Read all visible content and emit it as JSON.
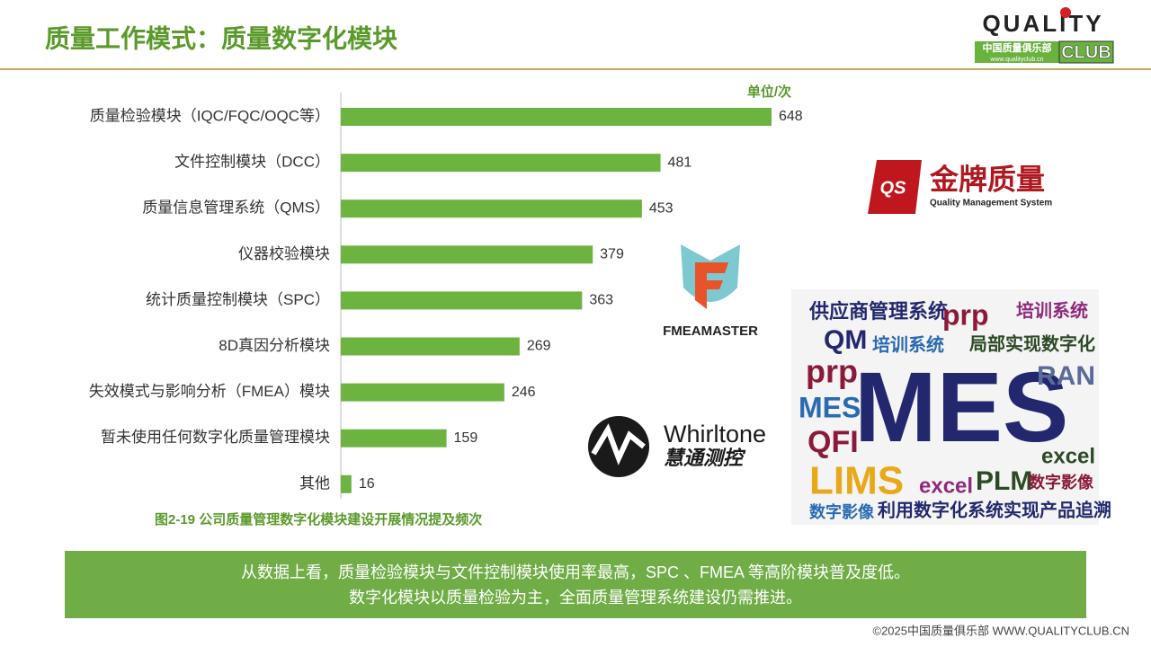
{
  "header": {
    "title": "质量工作模式：质量数字化模块"
  },
  "logos": {
    "quality_club": "QUALITY",
    "club": "CLUB",
    "club_cn": "中国质量俱乐部",
    "club_url": "www.qualityclub.cn",
    "qs_mark": "QS",
    "qs_name": "金牌质量",
    "qs_sub": "Quality Management System",
    "fmea": "FMEAMASTER",
    "whirltone": "Whirltone",
    "whirltone_cn": "慧通测控"
  },
  "chart_data": {
    "type": "bar",
    "orientation": "horizontal",
    "unit": "单位/次",
    "categories": [
      "质量检验模块（IQC/FQC/OQC等）",
      "文件控制模块（DCC）",
      "质量信息管理系统（QMS）",
      "仪器校验模块",
      "统计质量控制模块（SPC）",
      "8D真因分析模块",
      "失效模式与影响分析（FMEA）模块",
      "暂未使用任何数字化质量管理模块",
      "其他"
    ],
    "values": [
      648,
      481,
      453,
      379,
      363,
      269,
      246,
      159,
      16
    ],
    "color": "#6db33f",
    "caption": "图2-19  公司质量管理数字化模块建设开展情况提及频次"
  },
  "word_cloud": [
    "供应商管理系统",
    "prp",
    "培训系统",
    "QM",
    "培训系统",
    "局部实现数字化",
    "prp",
    "MES",
    "RAN",
    "MES",
    "QFI",
    "LIMS",
    "excel",
    "PLM",
    "数字影像",
    "excel",
    "数字影像",
    "利用数字化系统实现产品追溯"
  ],
  "summary": [
    "从数据上看，质量检验模块与文件控制模块使用率最高，SPC 、FMEA 等高阶模块普及度低。",
    "数字化模块以质量检验为主，全面质量管理系统建设仍需推进。"
  ],
  "footer": "©2025中国质量俱乐部 WWW.QUALITYCLUB.CN"
}
